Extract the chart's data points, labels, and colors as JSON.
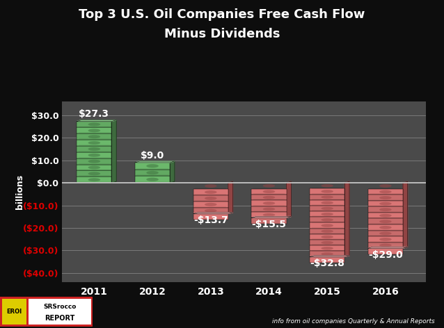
{
  "title_line1": "Top 3 U.S. Oil Companies Free Cash Flow",
  "title_line2": "Minus Dividends",
  "categories": [
    "2011",
    "2012",
    "2013",
    "2014",
    "2015",
    "2016"
  ],
  "values": [
    27.3,
    9.0,
    -13.7,
    -15.5,
    -32.8,
    -29.0
  ],
  "value_labels": [
    "$27.3",
    "$9.0",
    "-$13.7",
    "-$15.5",
    "-$32.8",
    "-$29.0"
  ],
  "positive_color": "#6bb86b",
  "negative_color": "#d97575",
  "positive_dark": "#3d6e3d",
  "negative_dark": "#994444",
  "positive_light": "#99dd99",
  "negative_light": "#f0aaaa",
  "background_color": "#0d0d0d",
  "plot_bg_color": "#4a4a4a",
  "plot_bg_dark": "#2a2a2a",
  "ylabel": "billions",
  "ylim_min": -44,
  "ylim_max": 36,
  "yticks": [
    30.0,
    20.0,
    10.0,
    0.0,
    -10.0,
    -20.0,
    -30.0,
    -40.0
  ],
  "ytick_labels": [
    "$30.0",
    "$20.0",
    "$10.0",
    "$0.0",
    "($10.0)",
    "($20.0)",
    "($30.0)",
    "($40.0)"
  ],
  "grid_color": "#aaaaaa",
  "footnote": "info from oil companies Quarterly & Annual Reports",
  "title_color": "#ffffff",
  "ytick_color_positive": "#ffffff",
  "ytick_color_negative": "#dd0000",
  "label_color": "#ffffff"
}
